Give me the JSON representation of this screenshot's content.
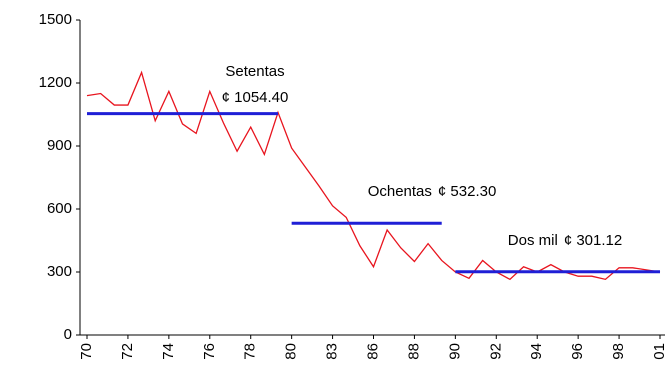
{
  "chart_data": {
    "type": "line",
    "categories": [
      "70",
      null,
      null,
      "72",
      null,
      null,
      "74",
      null,
      null,
      "76",
      null,
      null,
      "78",
      null,
      null,
      "80",
      null,
      null,
      "83",
      null,
      null,
      "86",
      null,
      null,
      "88",
      null,
      null,
      "90",
      null,
      null,
      "92",
      null,
      null,
      "94",
      null,
      null,
      "96",
      null,
      null,
      "98",
      null,
      null,
      "01"
    ],
    "series": [
      {
        "color": "#e8141e",
        "values": [
          1140,
          1150,
          1095,
          1095,
          1250,
          1020,
          1160,
          1005,
          960,
          1160,
          1010,
          875,
          990,
          860,
          1060,
          890,
          800,
          710,
          615,
          560,
          425,
          325,
          500,
          415,
          350,
          435,
          355,
          300,
          270,
          355,
          300,
          265,
          325,
          300,
          335,
          300,
          280,
          280,
          265,
          320,
          320,
          310,
          300
        ]
      }
    ],
    "segments": [
      {
        "name": "Setentas",
        "value": 1054.4,
        "value_label": "¢ 1054.40",
        "from": 0,
        "to": 14,
        "color": "#1f1fd6"
      },
      {
        "name": "Ochentas",
        "value": 532.3,
        "value_label": "¢ 532.30",
        "from": 15,
        "to": 26,
        "color": "#1f1fd6"
      },
      {
        "name": "Dos mil",
        "value": 301.12,
        "value_label": "¢ 301.12",
        "from": 27,
        "to": 42,
        "color": "#1f1fd6"
      }
    ],
    "ylim": [
      0,
      1500
    ],
    "yticks": [
      0,
      300,
      600,
      900,
      1200,
      1500
    ],
    "grid": false
  }
}
